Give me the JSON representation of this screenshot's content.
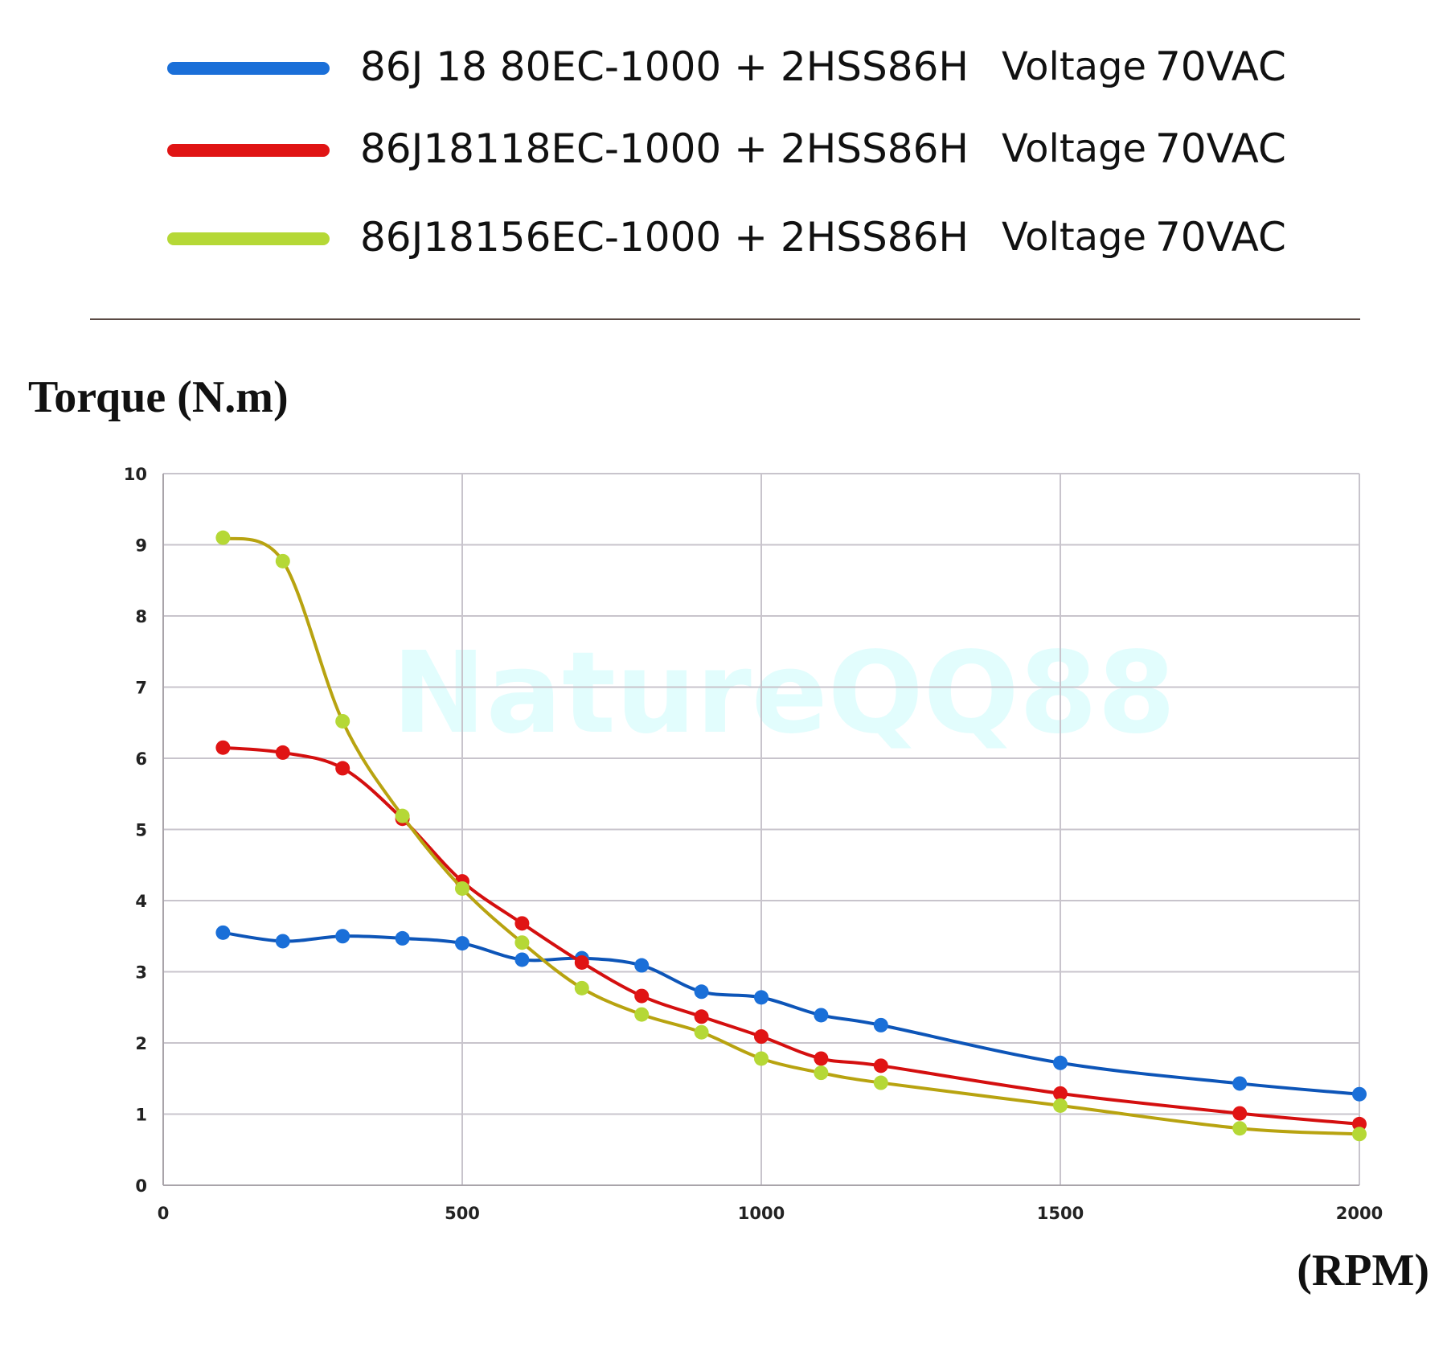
{
  "legend": [
    {
      "model": "86J 18 80EC-1000 + 2HSS86H",
      "voltage_label": "Voltage",
      "voltage": "70VAC",
      "color": "#1a6fd8"
    },
    {
      "model": "86J18118EC-1000 + 2HSS86H",
      "voltage_label": "Voltage",
      "voltage": "70VAC",
      "color": "#e01414"
    },
    {
      "model": "86J18156EC-1000 + 2HSS86H",
      "voltage_label": "Voltage",
      "voltage": "70VAC",
      "color": "#b5d836"
    }
  ],
  "watermark": "NatureQQ88",
  "chart_data": {
    "type": "line",
    "title": "",
    "ylabel": "Torque (N.m)",
    "xlabel": "(RPM)",
    "xlim": [
      0,
      2000
    ],
    "ylim": [
      0,
      10
    ],
    "xticks": [
      "0",
      "500",
      "1000",
      "1500",
      "2000"
    ],
    "yticks": [
      "0",
      "1",
      "2",
      "3",
      "4",
      "5",
      "6",
      "7",
      "8",
      "9",
      "10"
    ],
    "grid": true,
    "x": [
      100,
      200,
      300,
      400,
      500,
      600,
      700,
      800,
      900,
      1000,
      1100,
      1200,
      1500,
      1800,
      2000
    ],
    "series": [
      {
        "name": "86J 18 80EC-1000 + 2HSS86H",
        "color": "#1a6fd8",
        "line_color": "#0d55b8",
        "values": [
          3.55,
          3.43,
          3.5,
          3.47,
          3.4,
          3.17,
          3.19,
          3.09,
          2.72,
          2.64,
          2.39,
          2.25,
          1.72,
          1.43,
          1.28
        ]
      },
      {
        "name": "86J18118EC-1000 + 2HSS86H",
        "color": "#e01414",
        "line_color": "#d40f0f",
        "values": [
          6.15,
          6.08,
          5.86,
          5.15,
          4.27,
          3.68,
          3.13,
          2.66,
          2.37,
          2.09,
          1.78,
          1.68,
          1.29,
          1.01,
          0.86
        ]
      },
      {
        "name": "86J18156EC-1000 + 2HSS86H",
        "color": "#b5d836",
        "line_color": "#b8a310",
        "values": [
          9.1,
          8.77,
          6.52,
          5.19,
          4.17,
          3.41,
          2.77,
          2.4,
          2.15,
          1.78,
          1.58,
          1.44,
          1.12,
          0.8,
          0.72
        ]
      }
    ]
  }
}
